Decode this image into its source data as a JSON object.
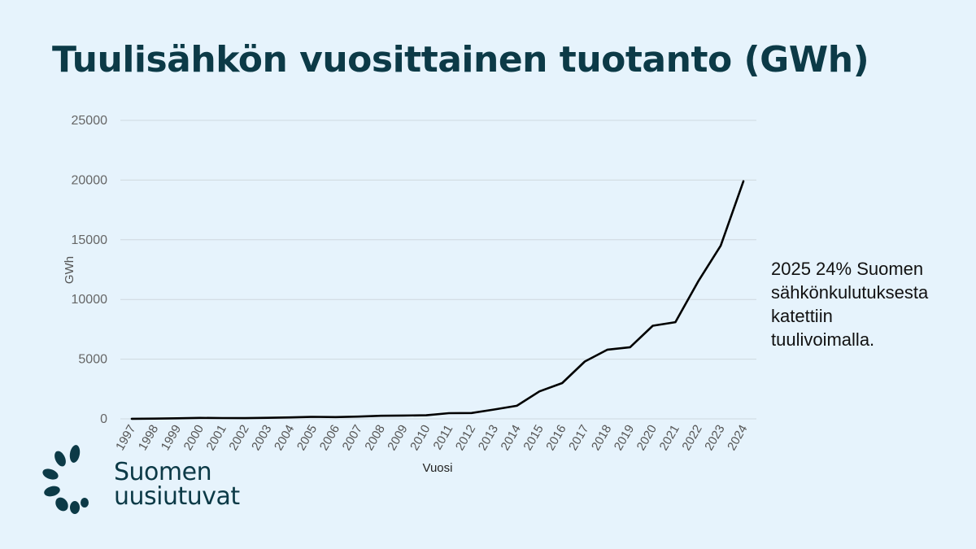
{
  "title": "Tuulisähkön vuosittainen tuotanto (GWh)",
  "annotation": {
    "lines": [
      "2025 24% Suomen",
      "sähkönkulutuksesta",
      "katettiin",
      "tuulivoimalla."
    ]
  },
  "logo": {
    "lines": [
      "Suomen",
      "uusiutuvat"
    ],
    "color": "#0c3a47"
  },
  "colors": {
    "background": "#e6f3fc",
    "line": "#000000",
    "grid": "#cfd8df",
    "title": "#0c3a47"
  },
  "chart_data": {
    "type": "line",
    "xlabel": "Vuosi",
    "ylabel": "GWh",
    "ylim": [
      0,
      25000
    ],
    "yticks": [
      0,
      5000,
      10000,
      15000,
      20000,
      25000
    ],
    "grid": true,
    "x": [
      "1997",
      "1998",
      "1999",
      "2000",
      "2001",
      "2002",
      "2003",
      "2004",
      "2005",
      "2006",
      "2007",
      "2008",
      "2009",
      "2010",
      "2011",
      "2012",
      "2013",
      "2014",
      "2015",
      "2016",
      "2017",
      "2018",
      "2019",
      "2020",
      "2021",
      "2022",
      "2023",
      "2024"
    ],
    "values": [
      10,
      20,
      50,
      80,
      70,
      60,
      90,
      120,
      170,
      150,
      190,
      260,
      280,
      300,
      480,
      490,
      780,
      1100,
      2300,
      3000,
      4800,
      5800,
      6000,
      7800,
      8100,
      11500,
      14500,
      19900
    ]
  }
}
